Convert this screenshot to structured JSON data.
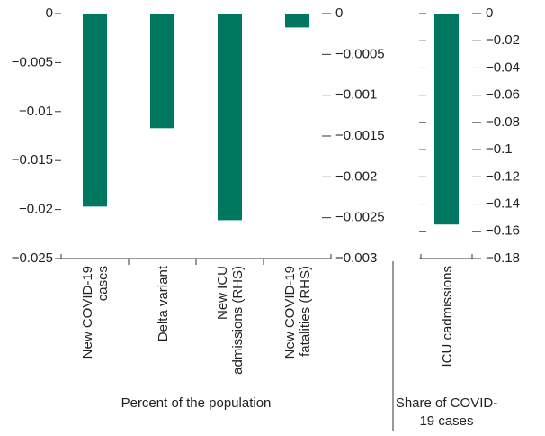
{
  "chart_data": [
    {
      "type": "bar",
      "categories": [
        "New COVID-19 cases",
        "Delta variant",
        "New ICU admissions (RHS)",
        "New COVID-19 fatalities (RHS)"
      ],
      "series": [
        {
          "color": "#00775f",
          "values": [
            -0.0197,
            -0.0117,
            null,
            null
          ]
        },
        {
          "color": "#00775f",
          "axis": "y2",
          "values": [
            null,
            null,
            -0.00253,
            -0.00017
          ]
        }
      ],
      "ylim": [
        -0.025,
        0
      ],
      "yticks": [
        0,
        {
          "value": -0.005,
          "label": "−0.005"
        },
        {
          "value": -0.01,
          "label": "−0.01"
        },
        {
          "value": -0.015,
          "label": "−0.015"
        },
        {
          "value": -0.02,
          "label": "−0.02"
        },
        {
          "value": -0.025,
          "label": "−0.025"
        }
      ],
      "y2lim": [
        -0.003,
        0
      ],
      "y2ticks": [
        0,
        {
          "value": -0.0005,
          "label": "−0.0005"
        },
        {
          "value": -0.001,
          "label": "−0.001"
        },
        {
          "value": -0.0015,
          "label": "−0.0015"
        },
        {
          "value": -0.002,
          "label": "−0.002"
        },
        {
          "value": -0.0025,
          "label": "−0.0025"
        },
        {
          "value": -0.003,
          "label": "−0.003"
        }
      ],
      "x_label": "Percent of the population"
    },
    {
      "type": "bar",
      "categories": [
        "ICU cadmissions"
      ],
      "series": [
        {
          "color": "#00775f",
          "values": [
            -0.155
          ]
        }
      ],
      "ylim": [
        -0.18,
        0
      ],
      "yticks": [
        0,
        {
          "value": -0.02,
          "label": "−0.02"
        },
        {
          "value": -0.04,
          "label": "−0.04"
        },
        {
          "value": -0.06,
          "label": "−0.06"
        },
        {
          "value": -0.08,
          "label": "−0.08"
        },
        {
          "value": -0.1,
          "label": "−0.1"
        },
        {
          "value": -0.12,
          "label": "−0.12"
        },
        {
          "value": -0.14,
          "label": "−0.14"
        },
        {
          "value": -0.16,
          "label": "−0.16"
        },
        {
          "value": -0.18,
          "label": "−0.18"
        }
      ],
      "ytick_side": "right",
      "x_label": "Share of COVID-19 cases"
    }
  ]
}
